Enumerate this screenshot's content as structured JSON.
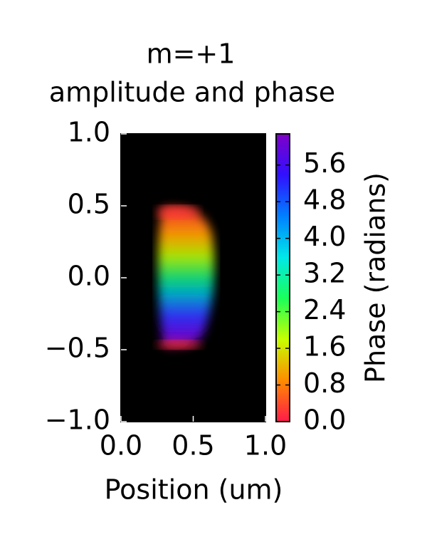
{
  "chart_data": {
    "type": "image",
    "title": [
      "m=+1",
      "amplitude and phase"
    ],
    "x_label": "Position (um)",
    "xlim": [
      0,
      1
    ],
    "xticks": [
      {
        "value": 0,
        "label": "0.0"
      },
      {
        "value": 0.5,
        "label": "0.5"
      },
      {
        "value": 1,
        "label": "1.0"
      }
    ],
    "ylim": [
      -1,
      1
    ],
    "yticks": [
      {
        "value": -1,
        "label": "−1.0"
      },
      {
        "value": -0.5,
        "label": "−0.5"
      },
      {
        "value": 0,
        "label": "0.0"
      },
      {
        "value": 0.5,
        "label": "0.5"
      },
      {
        "value": 1,
        "label": "1.0"
      }
    ],
    "colorbar": {
      "label": "Phase (radians)",
      "lim": [
        0,
        6.28
      ],
      "ticks": [
        {
          "value": 0,
          "label": "0.0"
        },
        0.8,
        1.6,
        2.4,
        3.2,
        {
          "value": 4,
          "label": "4.0"
        },
        4.8,
        5.6
      ],
      "colormap": [
        "#ff1a4a",
        "#ff8c00",
        "#c8ff00",
        "#1aff5a",
        "#00e8e8",
        "#0080ff",
        "#3010ff",
        "#8000c8"
      ]
    }
  }
}
